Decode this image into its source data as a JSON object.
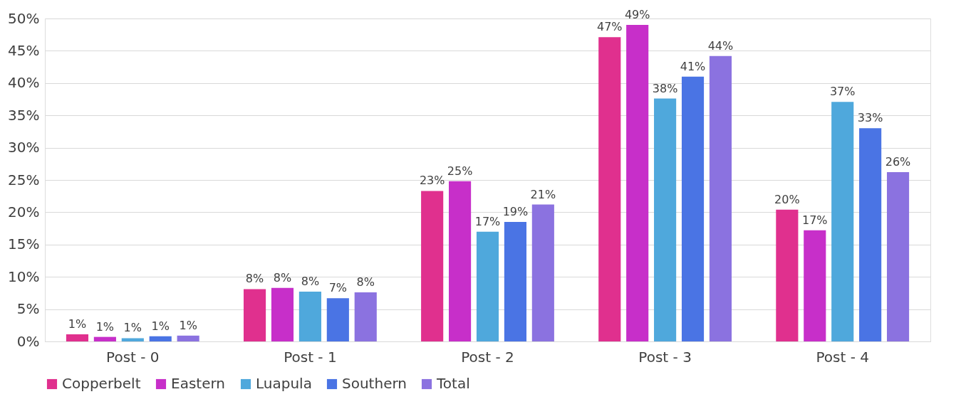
{
  "chart_data": {
    "type": "bar",
    "categories": [
      "Post - 0",
      "Post - 1",
      "Post - 2",
      "Post - 3",
      "Post - 4"
    ],
    "series": [
      {
        "name": "Copperbelt",
        "color": "#e0308e",
        "values": [
          1.1,
          8.1,
          23.3,
          47.1,
          20.4
        ],
        "value_labels": [
          "1%",
          "8%",
          "23%",
          "47%",
          "20%"
        ]
      },
      {
        "name": "Eastern",
        "color": "#c72fc9",
        "values": [
          0.7,
          8.3,
          24.8,
          49.0,
          17.2
        ],
        "value_labels": [
          "1%",
          "8%",
          "25%",
          "49%",
          "17%"
        ]
      },
      {
        "name": "Luapula",
        "color": "#4fa8dc",
        "values": [
          0.5,
          7.7,
          17.0,
          37.6,
          37.1
        ],
        "value_labels": [
          "1%",
          "8%",
          "17%",
          "38%",
          "37%"
        ]
      },
      {
        "name": "Southern",
        "color": "#4a74e4",
        "values": [
          0.8,
          6.7,
          18.5,
          41.0,
          33.0
        ],
        "value_labels": [
          "1%",
          "7%",
          "19%",
          "41%",
          "33%"
        ]
      },
      {
        "name": "Total",
        "color": "#8b72e0",
        "values": [
          0.9,
          7.6,
          21.2,
          44.2,
          26.2
        ],
        "value_labels": [
          "1%",
          "8%",
          "21%",
          "44%",
          "26%"
        ]
      }
    ],
    "ylim": [
      0,
      50
    ],
    "yticks": [
      {
        "value": 0,
        "label": "0%"
      },
      {
        "value": 5,
        "label": "5%"
      },
      {
        "value": 10,
        "label": "10%"
      },
      {
        "value": 15,
        "label": "15%"
      },
      {
        "value": 20,
        "label": "20%"
      },
      {
        "value": 25,
        "label": "25%"
      },
      {
        "value": 30,
        "label": "30%"
      },
      {
        "value": 35,
        "label": "35%"
      },
      {
        "value": 40,
        "label": "40%"
      },
      {
        "value": 45,
        "label": "45%"
      },
      {
        "value": 50,
        "label": "50%"
      }
    ],
    "grid": "y",
    "legend": "bottom"
  }
}
